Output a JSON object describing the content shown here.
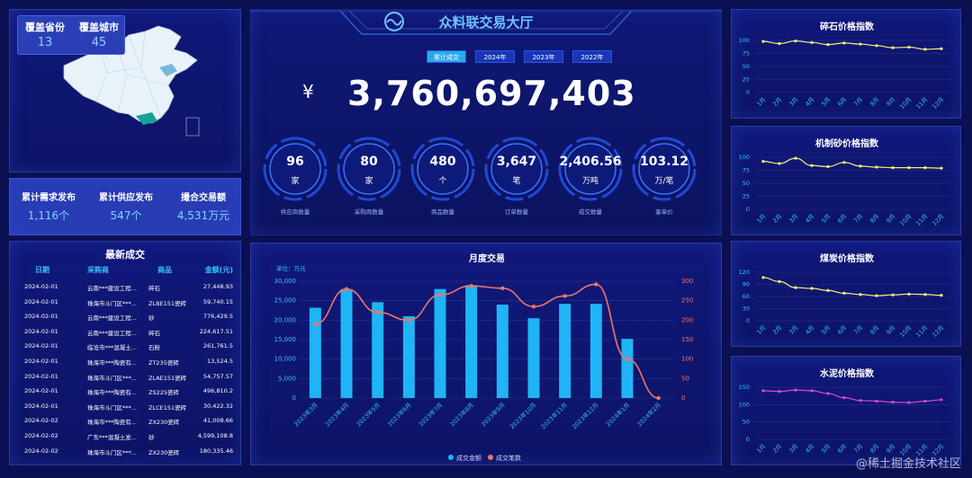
{
  "map": {
    "provinces_label": "覆盖省份",
    "provinces_value": "13",
    "cities_label": "覆盖城市",
    "cities_value": "45"
  },
  "summary": [
    {
      "label": "累计需求发布",
      "value": "1,116个"
    },
    {
      "label": "累计供应发布",
      "value": "547个"
    },
    {
      "label": "撮合交易额",
      "value": "4,531万元"
    }
  ],
  "latest": {
    "title": "最新成交",
    "headers": [
      "日期",
      "采购商",
      "商品",
      "金额(元)"
    ],
    "rows": [
      [
        "2024-02-01",
        "云南***建设工程...",
        "碎石",
        "27,448.93"
      ],
      [
        "2024-02-01",
        "珠海市斗门区***...",
        "ZLBE151瓷砖",
        "59,740.15"
      ],
      [
        "2024-02-01",
        "云南***建设工程...",
        "砂",
        "776,429.5"
      ],
      [
        "2024-02-01",
        "云南***建设工程...",
        "碎石",
        "224,617.51"
      ],
      [
        "2024-02-01",
        "临沧市***混凝土...",
        "石粉",
        "261,761.5"
      ],
      [
        "2024-02-01",
        "珠海市***陶瓷有...",
        "ZT235瓷砖",
        "13,524.5"
      ],
      [
        "2024-02-01",
        "珠海市斗门区***...",
        "ZLAE151瓷砖",
        "54,757.57"
      ],
      [
        "2024-02-01",
        "珠海市***陶瓷有...",
        "ZS225瓷砖",
        "496,810.2"
      ],
      [
        "2024-02-01",
        "珠海市斗门区***...",
        "ZLCE151瓷砖",
        "30,422.32"
      ],
      [
        "2024-02-02",
        "珠海市***陶瓷有...",
        "ZX230瓷砖",
        "41,008.66"
      ],
      [
        "2024-02-02",
        "广东***混凝土发...",
        "砂",
        "4,599,108.8"
      ],
      [
        "2024-02-02",
        "珠海市斗门区***...",
        "ZX230瓷砖",
        "180,335.46"
      ]
    ]
  },
  "header": {
    "title": "众料联交易大厅",
    "logo_icon": "wave-logo-icon"
  },
  "tabs": [
    {
      "label": "累计成交",
      "active": true
    },
    {
      "label": "2024年",
      "active": false
    },
    {
      "label": "2023年",
      "active": false
    },
    {
      "label": "2022年",
      "active": false
    }
  ],
  "total": {
    "currency": "¥",
    "value": "3,760,697,403"
  },
  "stats": [
    {
      "value": "96",
      "unit": "家",
      "label": "供应商数量"
    },
    {
      "value": "80",
      "unit": "家",
      "label": "采购商数量"
    },
    {
      "value": "480",
      "unit": "个",
      "label": "商品数量"
    },
    {
      "value": "3,647",
      "unit": "笔",
      "label": "订单数量"
    },
    {
      "value": "2,406.56",
      "unit": "万吨",
      "label": "成交数量"
    },
    {
      "value": "103.12",
      "unit": "万/笔",
      "label": "客单价"
    }
  ],
  "chart_data": [
    {
      "type": "bar",
      "title": "月度交易",
      "unit_label": "单位：万元",
      "categories": [
        "2023年3月",
        "2023年4月",
        "2023年5月",
        "2023年6月",
        "2023年7月",
        "2023年8月",
        "2023年9月",
        "2023年10月",
        "2023年11月",
        "2023年12月",
        "2024年1月",
        "2024年2月"
      ],
      "yticks_left": [
        "0",
        "5,000",
        "10,000",
        "15,000",
        "20,000",
        "25,000",
        "30,000"
      ],
      "yticks_right": [
        "0",
        "50",
        "100",
        "150",
        "200",
        "250",
        "300"
      ],
      "ylim": [
        0,
        30000
      ],
      "y2lim": [
        0,
        300
      ],
      "series": [
        {
          "name": "成交金额",
          "kind": "bar",
          "axis": "left",
          "color": "#1fb4f5",
          "values": [
            23200,
            28000,
            24600,
            21000,
            28000,
            29000,
            24000,
            20500,
            24200,
            24200,
            15200,
            0
          ]
        },
        {
          "name": "成交笔数",
          "kind": "line",
          "axis": "right",
          "color": "#f07467",
          "values": [
            190,
            280,
            220,
            200,
            265,
            288,
            282,
            235,
            262,
            292,
            100,
            0
          ]
        }
      ],
      "legend": "bottom"
    },
    {
      "type": "line",
      "title": "碎石价格指数",
      "categories": [
        "1月",
        "2月",
        "3月",
        "4月",
        "5月",
        "6月",
        "7月",
        "8月",
        "9月",
        "10月",
        "11月",
        "12月"
      ],
      "yticks": [
        "0",
        "25",
        "50",
        "75",
        "100"
      ],
      "ylim": [
        0,
        100
      ],
      "color": "#f3f07a",
      "values": [
        98,
        94,
        99,
        96,
        92,
        95,
        93,
        90,
        86,
        87,
        83,
        84
      ]
    },
    {
      "type": "line",
      "title": "机制砂价格指数",
      "categories": [
        "1月",
        "2月",
        "3月",
        "4月",
        "5月",
        "6月",
        "7月",
        "8月",
        "9月",
        "10月",
        "11月",
        "12月"
      ],
      "yticks": [
        "0",
        "25",
        "50",
        "75",
        "100"
      ],
      "ylim": [
        0,
        100
      ],
      "color": "#f3f07a",
      "values": [
        92,
        88,
        98,
        84,
        82,
        90,
        83,
        81,
        80,
        80,
        80,
        79
      ]
    },
    {
      "type": "line",
      "title": "煤炭价格指数",
      "categories": [
        "1月",
        "2月",
        "3月",
        "4月",
        "5月",
        "6月",
        "7月",
        "8月",
        "9月",
        "10月",
        "11月",
        "12月"
      ],
      "yticks": [
        "0",
        "30",
        "60",
        "90",
        "120"
      ],
      "ylim": [
        0,
        120
      ],
      "color": "#f3f07a",
      "values": [
        107,
        97,
        82,
        80,
        75,
        68,
        65,
        62,
        64,
        66,
        65,
        63
      ]
    },
    {
      "type": "line",
      "title": "水泥价格指数",
      "categories": [
        "1月",
        "2月",
        "3月",
        "4月",
        "5月",
        "6月",
        "7月",
        "8月",
        "9月",
        "10月",
        "11月",
        "12月"
      ],
      "yticks": [
        "0",
        "50",
        "100",
        "150"
      ],
      "ylim": [
        0,
        150
      ],
      "color": "#d64bd6",
      "values": [
        140,
        138,
        142,
        140,
        132,
        120,
        112,
        110,
        107,
        106,
        110,
        114
      ]
    }
  ],
  "watermark": "@稀土掘金技术社区"
}
